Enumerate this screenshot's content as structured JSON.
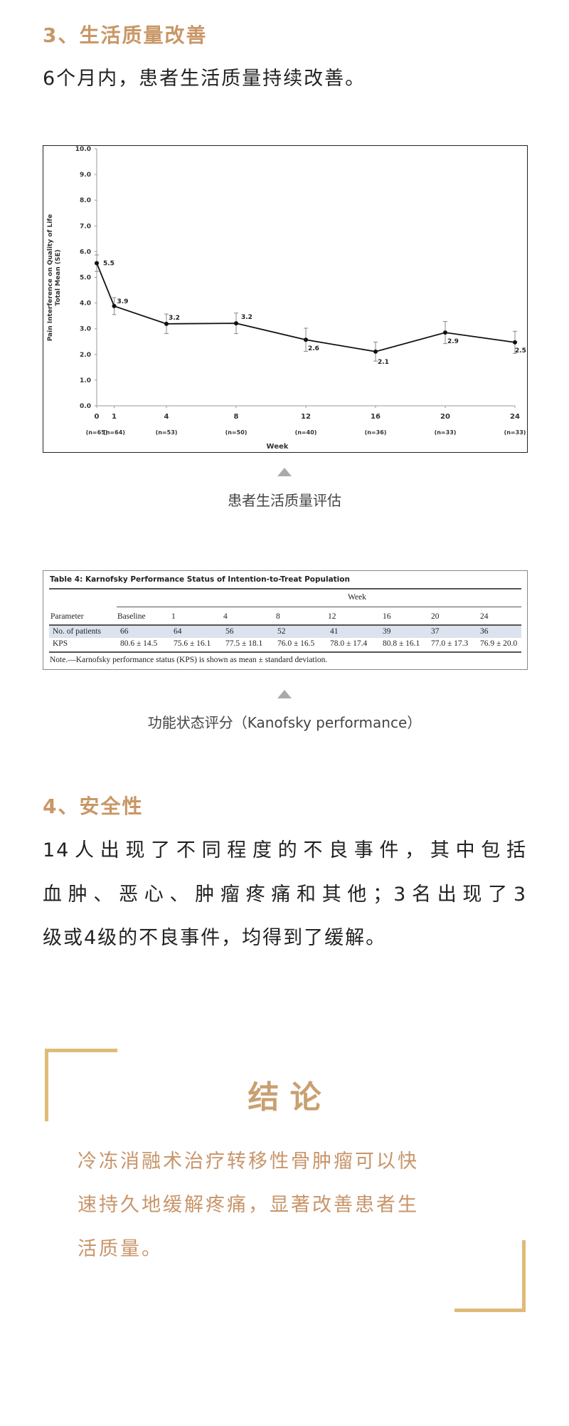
{
  "section3": {
    "heading": "3、生活质量改善",
    "text": "6个月内，患者生活质量持续改善。"
  },
  "chart_data": {
    "type": "line",
    "title": "",
    "ylabel_line1": "Pain Interference on Quality of Life",
    "ylabel_line2": "Total Mean (SE)",
    "xlabel": "Week",
    "ylim": [
      0,
      10
    ],
    "yticks": [
      "0.0",
      "1.0",
      "2.0",
      "3.0",
      "4.0",
      "5.0",
      "6.0",
      "7.0",
      "8.0",
      "9.0",
      "10.0"
    ],
    "x": [
      0,
      1,
      4,
      8,
      12,
      16,
      20,
      24
    ],
    "xtick_labels": [
      "0",
      "1",
      "4",
      "8",
      "12",
      "16",
      "20",
      "24"
    ],
    "n_labels": [
      "(n=65)",
      "(n=64)",
      "(n=53)",
      "(n=50)",
      "(n=40)",
      "(n=36)",
      "(n=33)",
      "(n=33)"
    ],
    "series": [
      {
        "values": [
          5.55,
          3.88,
          3.19,
          3.21,
          2.57,
          2.11,
          2.85,
          2.47
        ],
        "se": [
          0.32,
          0.33,
          0.38,
          0.4,
          0.45,
          0.37,
          0.43,
          0.43
        ],
        "data_labels": [
          "5.5",
          "3.9",
          "3.2",
          "3.2",
          "2.6",
          "2.1",
          "2.9",
          "2.5"
        ]
      }
    ],
    "grid": false,
    "legend": "none"
  },
  "caption1": "患者生活质量评估",
  "table": {
    "title": "Table 4: Karnofsky Performance Status of Intention-to-Treat Population",
    "group_header": "Week",
    "headers": [
      "Parameter",
      "Baseline",
      "1",
      "4",
      "8",
      "12",
      "16",
      "20",
      "24"
    ],
    "rows": [
      [
        "No. of patients",
        "66",
        "64",
        "56",
        "52",
        "41",
        "39",
        "37",
        "36"
      ],
      [
        "KPS",
        "80.6 ± 14.5",
        "75.6 ± 16.1",
        "77.5 ± 18.1",
        "76.0 ± 16.5",
        "78.0 ± 17.4",
        "80.8 ± 16.1",
        "77.0 ± 17.3",
        "76.9 ± 20.0"
      ]
    ],
    "note": "Note.—Karnofsky performance status (KPS) is shown as mean ± standard deviation.",
    "highlight_color": "#dce3ee"
  },
  "caption2": "功能状态评分（Kanofsky performance）",
  "section4": {
    "heading": "4、安全性",
    "lines": [
      "14人出现了不同程度的不良事件，其中包括",
      "血肿、恶心、肿瘤疼痛和其他；3名出现了3",
      "级或4级的不良事件，均得到了缓解。"
    ]
  },
  "conclusion": {
    "heading": "结 论",
    "lines": [
      "冷冻消融术治疗转移性骨肿瘤可以快",
      "速持久地缓解疼痛，显著改善患者生",
      "活质量。"
    ]
  },
  "colors": {
    "accent": "#c99766",
    "bracket": "#dfbb78",
    "body_text": "#222222"
  }
}
